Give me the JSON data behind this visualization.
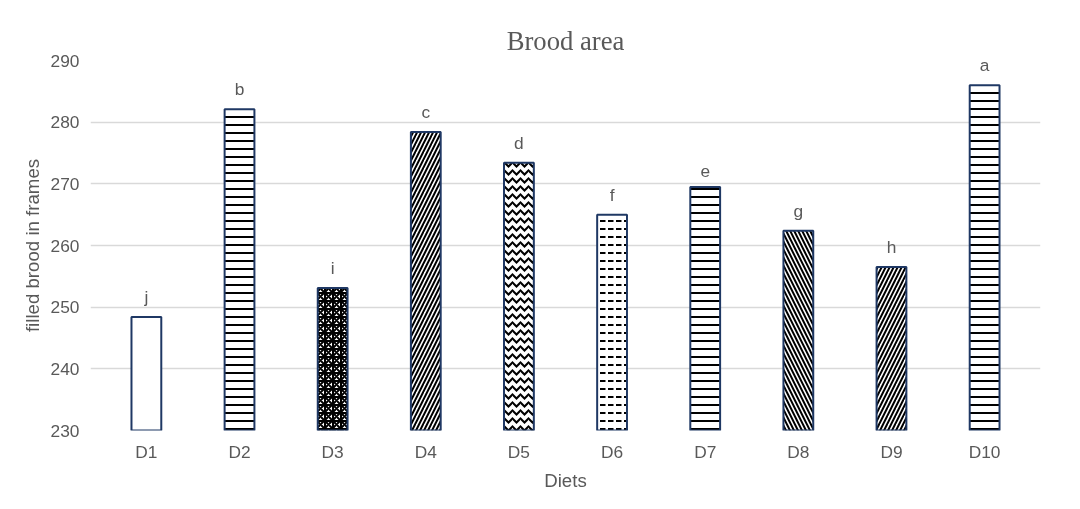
{
  "chart_data": {
    "type": "bar",
    "title": "Brood area",
    "xlabel": "Diets",
    "ylabel": "filled brood in frames",
    "categories": [
      "D1",
      "D2",
      "D3",
      "D4",
      "D5",
      "D6",
      "D7",
      "D8",
      "D9",
      "D10"
    ],
    "values": [
      248.4,
      282.1,
      253.1,
      278.4,
      273.4,
      265.0,
      269.5,
      262.4,
      256.5,
      286.0
    ],
    "color": "#1f3864",
    "ylim": [
      230,
      290
    ],
    "yticks": [
      230,
      240,
      250,
      260,
      270,
      280,
      290
    ],
    "grid": "y",
    "annotations": [
      {
        "text": "j",
        "x": "D1",
        "y": 248.4
      },
      {
        "text": "b",
        "x": "D2",
        "y": 282.1
      },
      {
        "text": "i",
        "x": "D3",
        "y": 253.1
      },
      {
        "text": "c",
        "x": "D4",
        "y": 278.4
      },
      {
        "text": "d",
        "x": "D5",
        "y": 273.4
      },
      {
        "text": "f",
        "x": "D6",
        "y": 265.0
      },
      {
        "text": "e",
        "x": "D7",
        "y": 269.5
      },
      {
        "text": "g",
        "x": "D8",
        "y": 262.4
      },
      {
        "text": "h",
        "x": "D9",
        "y": 256.5
      },
      {
        "text": "a",
        "x": "D10",
        "y": 286.0
      }
    ]
  }
}
